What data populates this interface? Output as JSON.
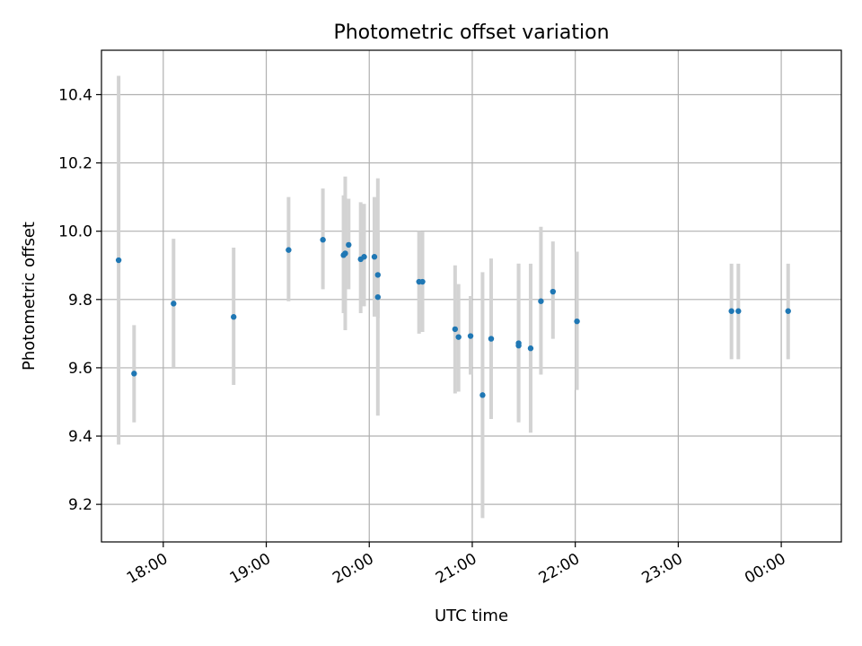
{
  "chart_data": {
    "type": "scatter",
    "title": "Photometric offset variation",
    "xlabel": "UTC time",
    "ylabel": "Photometric offset",
    "x_unit": "UTC time of day, continuing past midnight",
    "xlim": [
      "17:24",
      "24:35"
    ],
    "ylim": [
      9.09,
      10.53
    ],
    "x_ticks": [
      {
        "t": "18:00",
        "label": "18:00"
      },
      {
        "t": "19:00",
        "label": "19:00"
      },
      {
        "t": "20:00",
        "label": "20:00"
      },
      {
        "t": "21:00",
        "label": "21:00"
      },
      {
        "t": "22:00",
        "label": "22:00"
      },
      {
        "t": "23:00",
        "label": "23:00"
      },
      {
        "t": "24:00",
        "label": "00:00"
      }
    ],
    "y_ticks": [
      {
        "v": 9.2,
        "label": "9.2"
      },
      {
        "v": 9.4,
        "label": "9.4"
      },
      {
        "v": 9.6,
        "label": "9.6"
      },
      {
        "v": 9.8,
        "label": "9.8"
      },
      {
        "v": 10.0,
        "label": "10.0"
      },
      {
        "v": 10.2,
        "label": "10.2"
      },
      {
        "v": 10.4,
        "label": "10.4"
      }
    ],
    "grid": true,
    "legend": "none",
    "marker_color": "#1f77b4",
    "errorbar_color": "#d3d3d3",
    "points": [
      {
        "t": "17:34",
        "y": 9.915,
        "lo": 9.375,
        "hi": 10.455
      },
      {
        "t": "17:43",
        "y": 9.583,
        "lo": 9.44,
        "hi": 9.725
      },
      {
        "t": "18:06",
        "y": 9.788,
        "lo": 9.6,
        "hi": 9.978
      },
      {
        "t": "18:41",
        "y": 9.749,
        "lo": 9.55,
        "hi": 9.952
      },
      {
        "t": "19:13",
        "y": 9.945,
        "lo": 9.795,
        "hi": 10.1
      },
      {
        "t": "19:33",
        "y": 9.975,
        "lo": 9.83,
        "hi": 10.125
      },
      {
        "t": "19:45",
        "y": 9.93,
        "lo": 9.76,
        "hi": 10.105
      },
      {
        "t": "19:46",
        "y": 9.935,
        "lo": 9.71,
        "hi": 10.16
      },
      {
        "t": "19:48",
        "y": 9.96,
        "lo": 9.83,
        "hi": 10.095
      },
      {
        "t": "19:55",
        "y": 9.918,
        "lo": 9.76,
        "hi": 10.085
      },
      {
        "t": "19:57",
        "y": 9.925,
        "lo": 9.78,
        "hi": 10.08
      },
      {
        "t": "20:03",
        "y": 9.925,
        "lo": 9.75,
        "hi": 10.1
      },
      {
        "t": "20:05",
        "y": 9.807,
        "lo": 9.46,
        "hi": 10.155
      },
      {
        "t": "20:05",
        "y": 9.872,
        "lo": 9.745,
        "hi": 10.0
      },
      {
        "t": "20:29",
        "y": 9.852,
        "lo": 9.7,
        "hi": 10.0
      },
      {
        "t": "20:31",
        "y": 9.852,
        "lo": 9.705,
        "hi": 9.998
      },
      {
        "t": "20:50",
        "y": 9.713,
        "lo": 9.525,
        "hi": 9.9
      },
      {
        "t": "20:52",
        "y": 9.69,
        "lo": 9.53,
        "hi": 9.845
      },
      {
        "t": "20:59",
        "y": 9.693,
        "lo": 9.58,
        "hi": 9.81
      },
      {
        "t": "21:06",
        "y": 9.52,
        "lo": 9.16,
        "hi": 9.88
      },
      {
        "t": "21:11",
        "y": 9.685,
        "lo": 9.45,
        "hi": 9.92
      },
      {
        "t": "21:27",
        "y": 9.665,
        "lo": 9.44,
        "hi": 9.905
      },
      {
        "t": "21:27",
        "y": 9.672,
        "lo": 9.445,
        "hi": 9.905
      },
      {
        "t": "21:34",
        "y": 9.657,
        "lo": 9.41,
        "hi": 9.905
      },
      {
        "t": "21:40",
        "y": 9.795,
        "lo": 9.58,
        "hi": 10.013
      },
      {
        "t": "21:47",
        "y": 9.823,
        "lo": 9.685,
        "hi": 9.97
      },
      {
        "t": "22:01",
        "y": 9.736,
        "lo": 9.535,
        "hi": 9.94
      },
      {
        "t": "23:31",
        "y": 9.766,
        "lo": 9.625,
        "hi": 9.905
      },
      {
        "t": "23:35",
        "y": 9.766,
        "lo": 9.625,
        "hi": 9.905
      },
      {
        "t": "24:04",
        "y": 9.766,
        "lo": 9.625,
        "hi": 9.905
      }
    ]
  }
}
